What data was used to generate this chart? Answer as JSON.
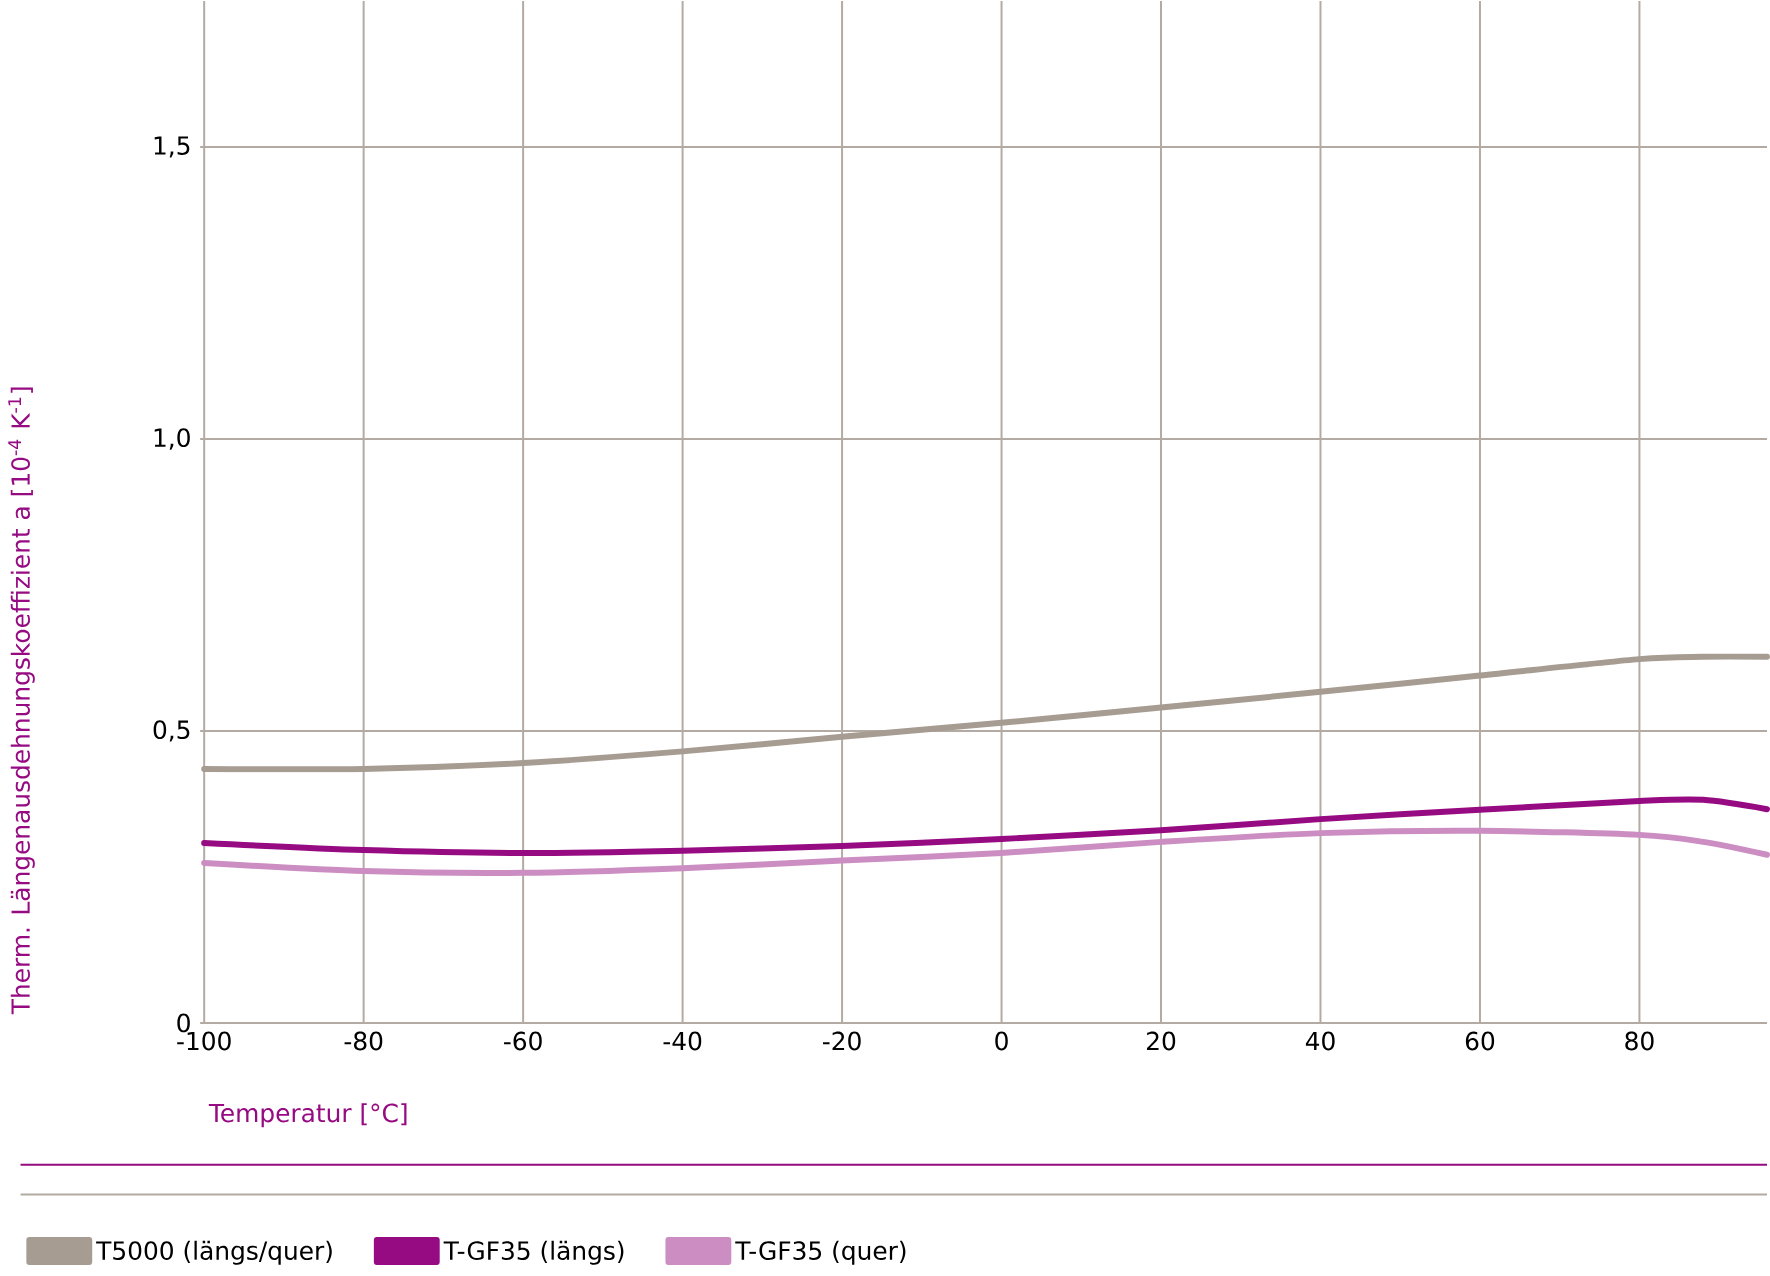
{
  "chart_data": {
    "type": "line",
    "xlabel": "Temperatur [°C]",
    "ylabel": "Therm. Längenausdehnungskoeffizient a [10$^{-4}$ K$^{-1}$]",
    "xlim": [
      -100.5,
      96
    ],
    "ylim": [
      0,
      1.75
    ],
    "xticks": [
      -100,
      -80,
      -60,
      -40,
      -20,
      0,
      20,
      40,
      60,
      80
    ],
    "yticks": [
      0,
      {
        "value": 0.5,
        "label": "0,5"
      },
      {
        "value": 1.0,
        "label": "1,0"
      },
      {
        "value": 1.5,
        "label": "1,5"
      }
    ],
    "grid": true,
    "legend": "bottom",
    "marker": "none",
    "line_style": "solid",
    "x": [
      -100,
      -80,
      -60,
      -40,
      -20,
      0,
      20,
      40,
      60,
      80,
      88,
      96
    ],
    "series": [
      {
        "name": "T5000 (längs/quer)",
        "color": "#a79c92",
        "values": [
          0.435,
          0.435,
          0.445,
          0.465,
          0.49,
          0.514,
          0.54,
          0.567,
          0.595,
          0.623,
          0.627,
          0.627
        ]
      },
      {
        "name": "T-GF35 (längs)",
        "color": "#960a82",
        "values": [
          0.308,
          0.296,
          0.291,
          0.295,
          0.303,
          0.315,
          0.33,
          0.349,
          0.365,
          0.38,
          0.382,
          0.366
        ]
      },
      {
        "name": "T-GF35 (quer)",
        "color": "#cc8ec2",
        "values": [
          0.274,
          0.26,
          0.257,
          0.265,
          0.278,
          0.291,
          0.31,
          0.325,
          0.329,
          0.322,
          0.31,
          0.288
        ]
      }
    ]
  }
}
